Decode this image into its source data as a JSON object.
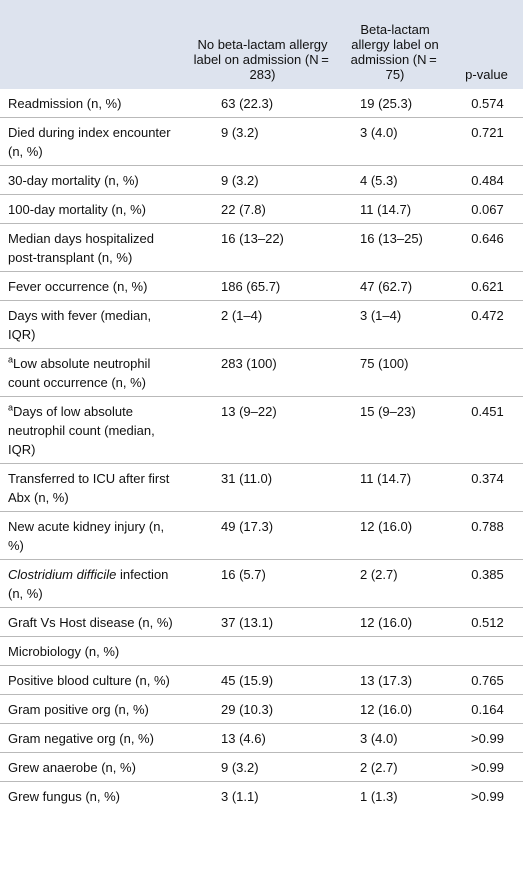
{
  "table": {
    "header": [
      "No beta-lactam allergy label on admission (N = 283)",
      "Beta-lactam allergy label on admission (N = 75)",
      "p-value"
    ],
    "rows": [
      {
        "label": "Readmission (n, %)",
        "no_allergy": "63 (22.3)",
        "allergy": "19 (25.3)",
        "p": "0.574"
      },
      {
        "label": "Died during index encounter (n, %)",
        "no_allergy": "9 (3.2)",
        "allergy": "3 (4.0)",
        "p": "0.721"
      },
      {
        "label": "30-day mortality (n, %)",
        "no_allergy": "9 (3.2)",
        "allergy": "4 (5.3)",
        "p": "0.484"
      },
      {
        "label": "100-day mortality (n, %)",
        "no_allergy": "22 (7.8)",
        "allergy": "11 (14.7)",
        "p": "0.067"
      },
      {
        "label": "Median days hospitalized post-transplant (n, %)",
        "no_allergy": "16 (13–22)",
        "allergy": "16 (13–25)",
        "p": "0.646"
      },
      {
        "label": "Fever occurrence (n, %)",
        "no_allergy": "186 (65.7)",
        "allergy": "47 (62.7)",
        "p": "0.621"
      },
      {
        "label": "Days with fever (median, IQR)",
        "no_allergy": "2 (1–4)",
        "allergy": "3 (1–4)",
        "p": "0.472"
      },
      {
        "mark": "a",
        "label": "Low absolute neutrophil count occurrence (n, %)",
        "no_allergy": "283 (100)",
        "allergy": "75 (100)"
      },
      {
        "mark": "a",
        "label": "Days of low absolute neutrophil count (median, IQR)",
        "no_allergy": "13 (9–22)",
        "allergy": "15 (9–23)",
        "p": "0.451"
      },
      {
        "label": "Transferred to ICU after first Abx (n, %)",
        "no_allergy": "31 (11.0)",
        "allergy": "11 (14.7)",
        "p": "0.374"
      },
      {
        "label": "New acute kidney injury (n, %)",
        "no_allergy": "49 (17.3)",
        "allergy": "12 (16.0)",
        "p": "0.788"
      },
      {
        "italic": "Clostridium difficile",
        "label": " infection (n, %)",
        "no_allergy": "16 (5.7)",
        "allergy": "2 (2.7)",
        "p": "0.385"
      },
      {
        "label": "Graft Vs Host disease (n, %)",
        "no_allergy": "37 (13.1)",
        "allergy": "12 (16.0)",
        "p": "0.512"
      },
      {
        "label": "Microbiology (n, %)"
      },
      {
        "label": "Positive blood culture (n, %)",
        "no_allergy": "45 (15.9)",
        "allergy": "13 (17.3)",
        "p": "0.765"
      },
      {
        "label": "Gram positive org (n, %)",
        "no_allergy": "29 (10.3)",
        "allergy": "12 (16.0)",
        "p": "0.164"
      },
      {
        "label": "Gram negative org (n, %)",
        "no_allergy": "13 (4.6)",
        "allergy": "3 (4.0)",
        "p": ">0.99"
      },
      {
        "label": "Grew anaerobe (n, %)",
        "no_allergy": "9 (3.2)",
        "allergy": "2 (2.7)",
        "p": ">0.99"
      },
      {
        "label": "Grew fungus (n, %)",
        "no_allergy": "3 (1.1)",
        "allergy": "1 (1.3)",
        "p": ">0.99"
      }
    ]
  }
}
